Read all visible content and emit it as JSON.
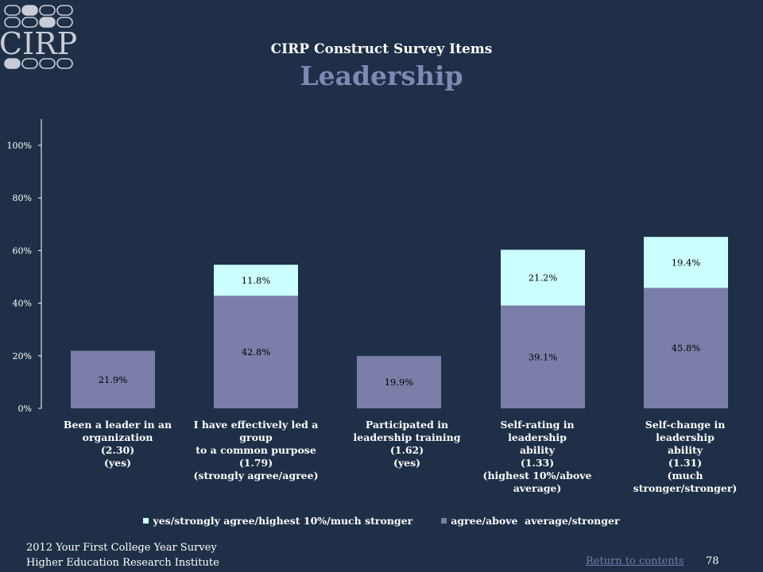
{
  "logo": {
    "text": "CIRP"
  },
  "header": {
    "title": "CIRP Construct Survey Items",
    "subtitle": "Leadership"
  },
  "colors": {
    "background": "#1f2f47",
    "series_top": "#ccffff",
    "series_bottom": "#7a7ea9",
    "subtitle": "#8088b5",
    "link": "#6f7da6"
  },
  "chart_data": {
    "type": "bar",
    "stacked": true,
    "categories": [
      [
        "Been a leader in an",
        "organization",
        "(2.30)",
        "(yes)"
      ],
      [
        "I have effectively led a group",
        "to a common purpose",
        "(1.79)",
        "(strongly agree/agree)"
      ],
      [
        "Participated in",
        "leadership training",
        "(1.62)",
        "(yes)"
      ],
      [
        "Self-rating in leadership",
        "ability",
        "(1.33)",
        "(highest 10%/above average)"
      ],
      [
        "Self-change in leadership",
        "ability",
        "(1.31)",
        "(much stronger/stronger)"
      ]
    ],
    "series": [
      {
        "name": "agree/above  average/stronger",
        "color": "#7a7ea9",
        "values": [
          21.9,
          42.8,
          19.9,
          39.1,
          45.8
        ],
        "labels": [
          "21.9%",
          "42.8%",
          "19.9%",
          "39.1%",
          "45.8%"
        ]
      },
      {
        "name": "yes/strongly agree/highest 10%/much stronger",
        "color": "#ccffff",
        "values": [
          null,
          11.8,
          null,
          21.2,
          19.4
        ],
        "labels": [
          "",
          "11.8%",
          "",
          "21.2%",
          "19.4%"
        ]
      }
    ],
    "yticks": [
      0,
      20,
      40,
      60,
      80,
      100
    ],
    "ytick_labels": [
      "0%",
      "20%",
      "40%",
      "60%",
      "80%",
      "100%"
    ],
    "ylim": [
      0,
      110
    ],
    "grid": false,
    "legend": "bottom"
  },
  "legend": {
    "items": [
      {
        "label": "yes/strongly agree/highest 10%/much stronger",
        "color": "#ccffff"
      },
      {
        "label": "agree/above  average/stronger",
        "color": "#7a7ea9"
      }
    ]
  },
  "footer": {
    "line1": "2012 Your First College Year Survey",
    "line2": "Higher Education Research Institute",
    "link": "Return to contents",
    "page": "78"
  }
}
